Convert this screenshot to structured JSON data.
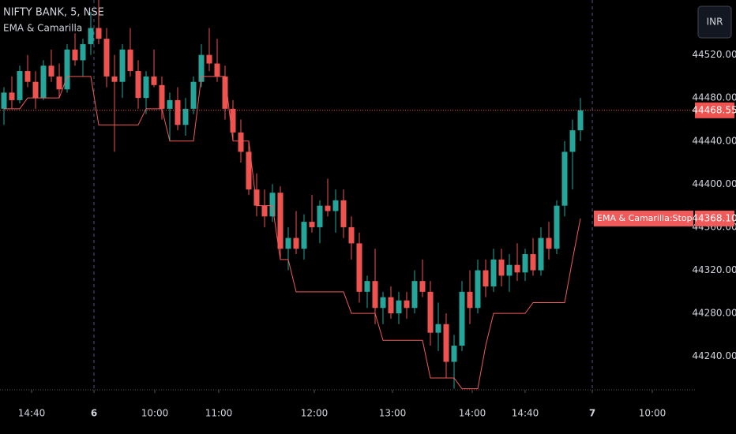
{
  "chart_data": {
    "type": "candlestick",
    "title": "NIFTY BANK, 5, NSE",
    "subtitle": "EMA & Camarilla",
    "currency": "INR",
    "up_color": "#26a69a",
    "down_color": "#ef5350",
    "open": [
      44470,
      44485,
      44478,
      44505,
      44495,
      44480,
      44510,
      44500,
      44488,
      44525,
      44515,
      44530,
      44545,
      44535,
      44500,
      44495,
      44525,
      44505,
      44480,
      44500,
      44492,
      44470,
      44478,
      44455,
      44470,
      44495,
      44520,
      44512,
      44500,
      44470,
      44448,
      44430,
      44395,
      44380,
      44370,
      44392,
      44340,
      44350,
      44340,
      44365,
      44360,
      44380,
      44375,
      44385,
      44360,
      44345,
      44300,
      44310,
      44285,
      44295,
      44280,
      44292,
      44285,
      44310,
      44300,
      44262,
      44270,
      44235,
      44250,
      44300,
      44285,
      44320,
      44305,
      44330,
      44315,
      44325,
      44318,
      44335,
      44320,
      44350,
      44340,
      44380,
      44430,
      44450
    ],
    "high": [
      44490,
      44500,
      44510,
      44520,
      44505,
      44515,
      44525,
      44512,
      44530,
      44540,
      44535,
      44560,
      44580,
      44545,
      44520,
      44530,
      44545,
      44515,
      44505,
      44525,
      44500,
      44485,
      44490,
      44480,
      44500,
      44530,
      44545,
      44535,
      44510,
      44478,
      44460,
      44440,
      44410,
      44395,
      44400,
      44398,
      44360,
      44375,
      44372,
      44390,
      44385,
      44405,
      44395,
      44395,
      44370,
      44355,
      44315,
      44340,
      44300,
      44305,
      44300,
      44300,
      44320,
      44330,
      44310,
      44290,
      44280,
      44260,
      44310,
      44320,
      44330,
      44330,
      44340,
      44340,
      44335,
      44345,
      44340,
      44350,
      44360,
      44365,
      44385,
      44440,
      44460,
      44480
    ],
    "low": [
      44455,
      44470,
      44475,
      44490,
      44470,
      44478,
      44495,
      44480,
      44485,
      44510,
      44500,
      44520,
      44530,
      44490,
      44430,
      44480,
      44500,
      44470,
      44465,
      44490,
      44460,
      44440,
      44450,
      44445,
      44465,
      44490,
      44505,
      44495,
      44460,
      44440,
      44420,
      44390,
      44370,
      44360,
      44365,
      44330,
      44320,
      44335,
      44330,
      44355,
      44345,
      44370,
      44355,
      44350,
      44330,
      44290,
      44285,
      44270,
      44270,
      44275,
      44270,
      44275,
      44280,
      44295,
      44250,
      44245,
      44220,
      44210,
      44245,
      44270,
      44280,
      44295,
      44300,
      44305,
      44300,
      44310,
      44310,
      44315,
      44315,
      44330,
      44335,
      44370,
      44395,
      44440
    ],
    "close": [
      44485,
      44478,
      44505,
      44495,
      44480,
      44510,
      44500,
      44488,
      44525,
      44515,
      44530,
      44545,
      44535,
      44500,
      44495,
      44525,
      44505,
      44480,
      44500,
      44492,
      44470,
      44478,
      44455,
      44470,
      44495,
      44520,
      44512,
      44500,
      44470,
      44448,
      44430,
      44395,
      44380,
      44370,
      44392,
      44340,
      44350,
      44340,
      44365,
      44360,
      44380,
      44375,
      44385,
      44360,
      44345,
      44300,
      44310,
      44285,
      44295,
      44280,
      44292,
      44285,
      44310,
      44300,
      44262,
      44270,
      44235,
      44250,
      44300,
      44285,
      44320,
      44305,
      44330,
      44315,
      44325,
      44318,
      44335,
      44320,
      44350,
      44340,
      44380,
      44430,
      44450,
      44468.55
    ],
    "last_price": {
      "value": 44468.55,
      "label": "44468.55"
    },
    "lines": [
      {
        "name": "EMA & Camarilla:Stop Loss",
        "color": "#f05a5a",
        "values": [
          44470,
          44470,
          44470,
          44480,
          44480,
          44480,
          44480,
          44480,
          44500,
          44500,
          44500,
          44500,
          44455,
          44455,
          44455,
          44455,
          44455,
          44455,
          44470,
          44470,
          44470,
          44440,
          44440,
          44440,
          44440,
          44500,
          44500,
          44500,
          44500,
          44440,
          44440,
          44440,
          44380,
          44380,
          44380,
          44330,
          44330,
          44300,
          44300,
          44300,
          44300,
          44300,
          44300,
          44300,
          44280,
          44280,
          44280,
          44280,
          44255,
          44255,
          44255,
          44255,
          44255,
          44255,
          44220,
          44220,
          44220,
          44220,
          44210,
          44210,
          44210,
          44250,
          44280,
          44280,
          44280,
          44280,
          44280,
          44290,
          44290,
          44290,
          44290,
          44290,
          44330,
          44368.1
        ],
        "last_label": "44368.10"
      }
    ],
    "ylim": [
      44209,
      44571
    ],
    "yticks": [
      {
        "value": 44240,
        "label": "44240.00"
      },
      {
        "value": 44280,
        "label": "44280.00"
      },
      {
        "value": 44320,
        "label": "44320.00"
      },
      {
        "value": 44360,
        "label": "44360.00"
      },
      {
        "value": 44400,
        "label": "44400.00"
      },
      {
        "value": 44440,
        "label": "44440.00"
      },
      {
        "value": 44480,
        "label": "44480.00"
      },
      {
        "value": 44520,
        "label": "44520.00"
      }
    ],
    "xlim": [
      0,
      88
    ],
    "xticks": [
      {
        "value": 4,
        "label": "14:40"
      },
      {
        "value": 11.9,
        "label": "6"
      },
      {
        "value": 19.6,
        "label": "10:00"
      },
      {
        "value": 27.7,
        "label": "11:00"
      },
      {
        "value": 39.8,
        "label": "12:00"
      },
      {
        "value": 49.7,
        "label": "13:00"
      },
      {
        "value": 59.8,
        "label": "14:00"
      },
      {
        "value": 66.5,
        "label": "14:40"
      },
      {
        "value": 75,
        "label": "7"
      },
      {
        "value": 82.6,
        "label": "10:00"
      }
    ]
  }
}
